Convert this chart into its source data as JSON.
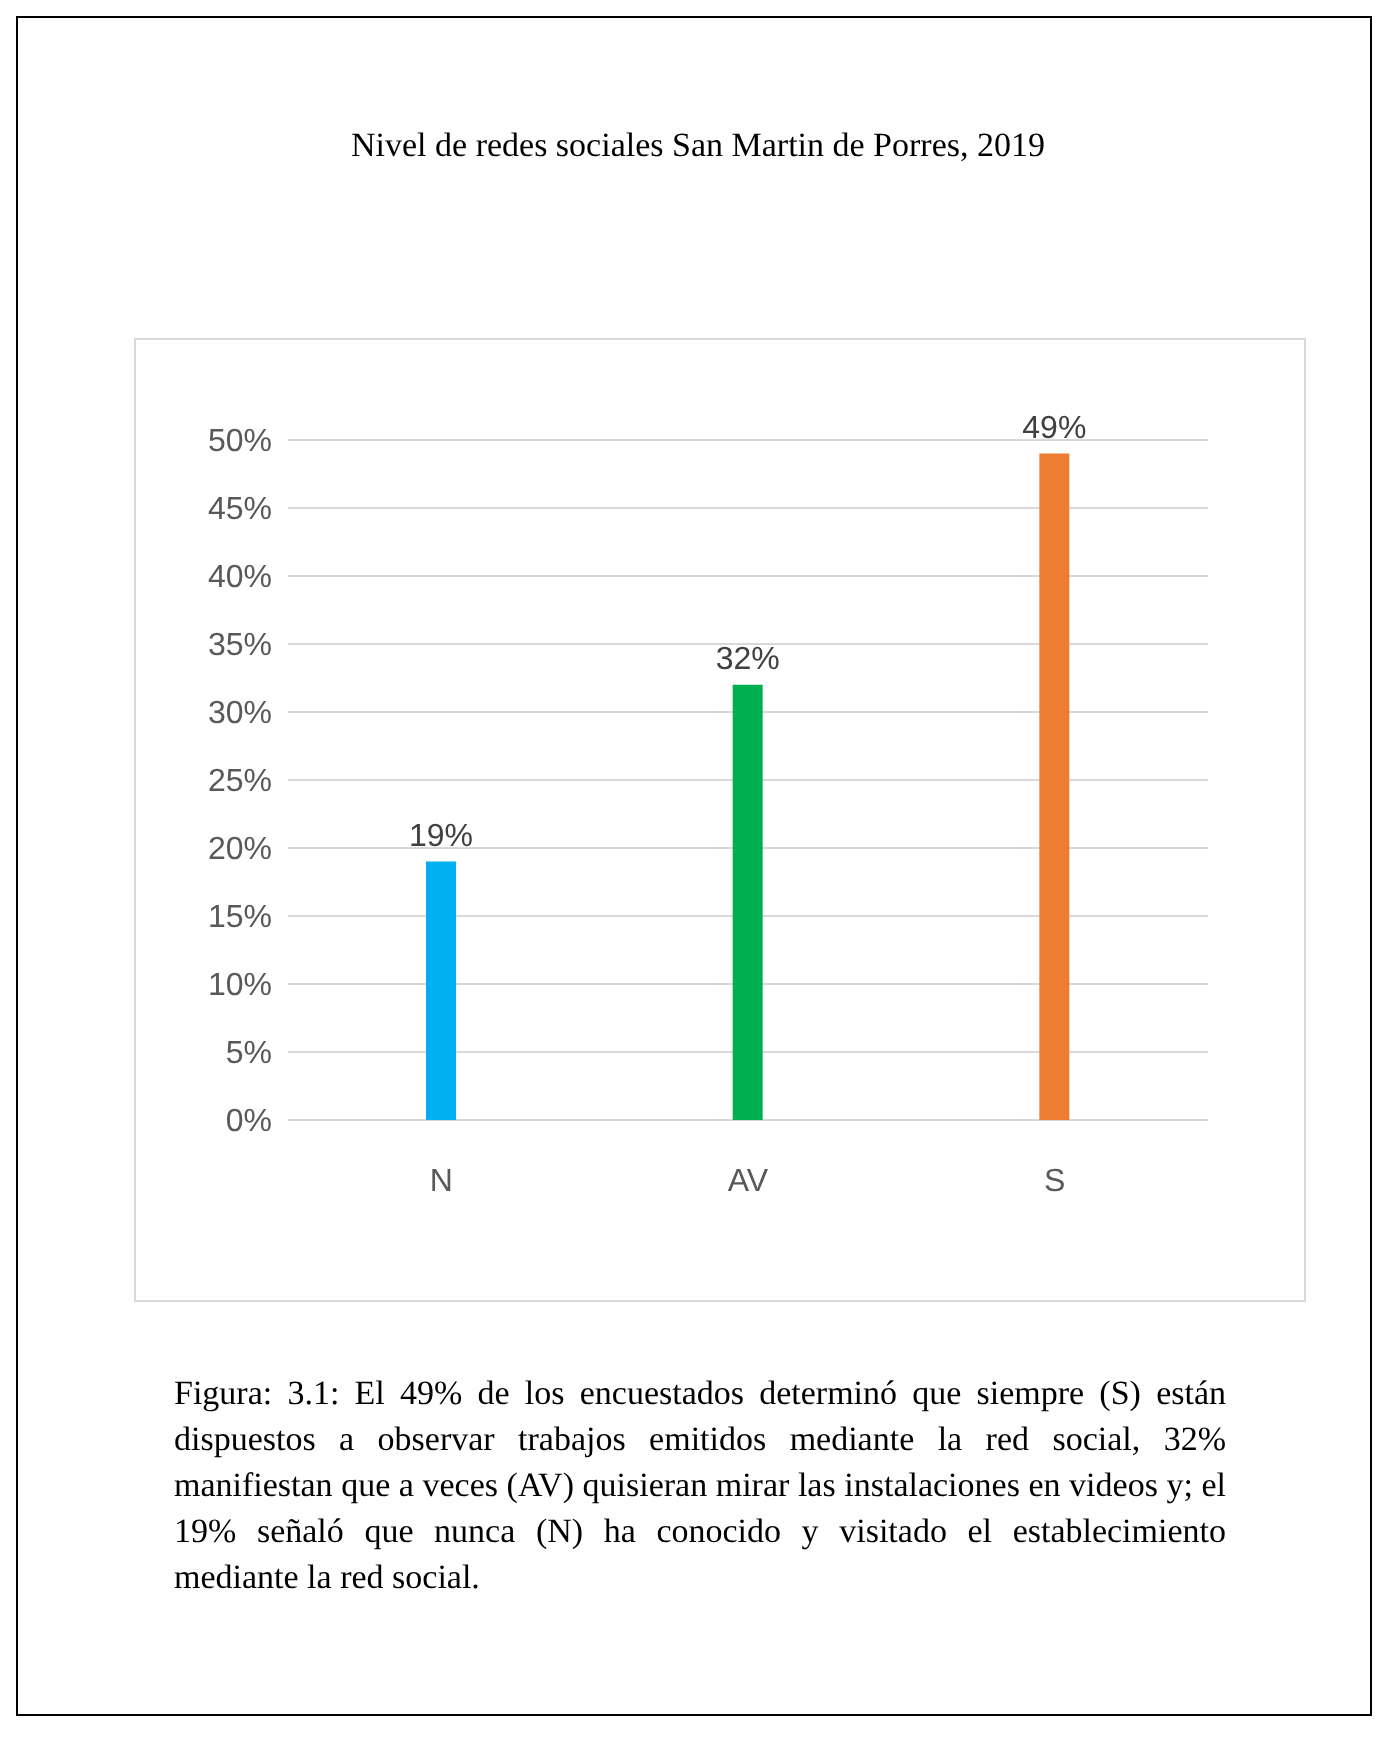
{
  "chart_data": {
    "type": "bar",
    "title": "Nivel de redes sociales San Martin de Porres, 2019",
    "categories": [
      "N",
      "AV",
      "S"
    ],
    "values": [
      19,
      32,
      49
    ],
    "colors": [
      "#00b0f0",
      "#00b050",
      "#ed7d31"
    ],
    "value_labels": [
      "19%",
      "32%",
      "49%"
    ],
    "ylim": [
      0,
      50
    ],
    "yticks": [
      {
        "value": 0,
        "label": "0%"
      },
      {
        "value": 5,
        "label": "5%"
      },
      {
        "value": 10,
        "label": "10%"
      },
      {
        "value": 15,
        "label": "15%"
      },
      {
        "value": 20,
        "label": "20%"
      },
      {
        "value": 25,
        "label": "25%"
      },
      {
        "value": 30,
        "label": "30%"
      },
      {
        "value": 35,
        "label": "35%"
      },
      {
        "value": 40,
        "label": "40%"
      },
      {
        "value": 45,
        "label": "45%"
      },
      {
        "value": 50,
        "label": "50%"
      }
    ],
    "grid": "y",
    "annotations": [
      "Figura: 3.1: El 49% de los encuestados determinó que siempre (S) están dispuestos a observar trabajos emitidos mediante la red social, 32% manifiestan que a veces (AV) quisieran mirar las instalaciones en videos y; el 19% señaló que nunca (N) ha conocido y visitado el establecimiento mediante la red social."
    ]
  }
}
